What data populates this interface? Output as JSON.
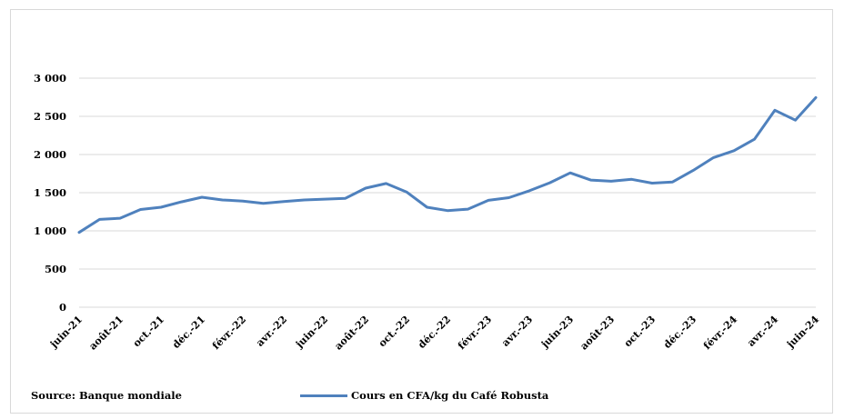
{
  "chart_data": {
    "type": "line",
    "title": "",
    "xlabel": "",
    "ylabel": "",
    "ylim": [
      0,
      3000
    ],
    "y_ticks": [
      0,
      500,
      1000,
      1500,
      2000,
      2500,
      3000
    ],
    "y_tick_labels": [
      "0",
      "500",
      "1 000",
      "1 500",
      "2 000",
      "2 500",
      "3 000"
    ],
    "x": [
      "juin-21",
      "juil.-21",
      "août-21",
      "sept.-21",
      "oct.-21",
      "nov.-21",
      "déc.-21",
      "janv.-22",
      "févr.-22",
      "mars-22",
      "avr.-22",
      "mai-22",
      "juin-22",
      "juil.-22",
      "août-22",
      "sept.-22",
      "oct.-22",
      "nov.-22",
      "déc.-22",
      "janv.-23",
      "févr.-23",
      "mars-23",
      "avr.-23",
      "mai-23",
      "juin-23",
      "juil.-23",
      "août-23",
      "sept.-23",
      "oct.-23",
      "nov.-23",
      "déc.-23",
      "janv.-24",
      "févr.-24",
      "mars-24",
      "avr.-24",
      "mai-24",
      "juin-24"
    ],
    "x_tick_labels": [
      "juin-21",
      "août-21",
      "oct.-21",
      "déc.-21",
      "févr.-22",
      "avr.-22",
      "juin-22",
      "août-22",
      "oct.-22",
      "déc.-22",
      "févr.-23",
      "avr.-23",
      "juin-23",
      "août-23",
      "oct.-23",
      "déc.-23",
      "févr.-24",
      "avr.-24",
      "juin-24"
    ],
    "series": [
      {
        "name": "Cours en CFA/kg du Café Robusta",
        "color": "#4f81bd",
        "values": [
          980,
          1150,
          1165,
          1280,
          1310,
          1380,
          1440,
          1405,
          1390,
          1360,
          1385,
          1405,
          1415,
          1425,
          1560,
          1620,
          1510,
          1310,
          1265,
          1285,
          1400,
          1435,
          1525,
          1630,
          1760,
          1665,
          1650,
          1675,
          1625,
          1640,
          1790,
          1960,
          2050,
          2200,
          2580,
          2450,
          2745
        ]
      }
    ],
    "grid": true,
    "legend_position": "bottom"
  },
  "source": "Source: Banque mondiale"
}
